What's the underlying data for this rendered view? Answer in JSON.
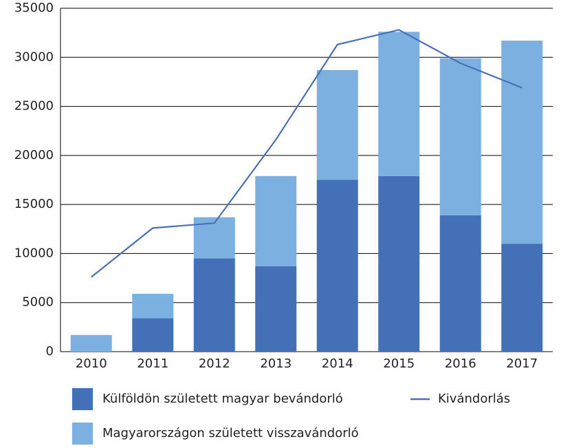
{
  "chart_data": {
    "type": "bar+line",
    "categories": [
      "2010",
      "2011",
      "2012",
      "2013",
      "2014",
      "2015",
      "2016",
      "2017"
    ],
    "series": [
      {
        "name": "Külföldön született magyar bevándorló",
        "type": "bar",
        "color": "#4470b8",
        "values": [
          0,
          3400,
          9500,
          8700,
          17500,
          17900,
          13900,
          11000
        ]
      },
      {
        "name": "Magyarországon született visszavándorló",
        "type": "bar",
        "color": "#7bb0e0",
        "values": [
          1700,
          2500,
          4200,
          9200,
          11200,
          14700,
          16000,
          20700
        ]
      },
      {
        "name": "Kivándorlás",
        "type": "line",
        "color": "#4a6fb5",
        "values": [
          7600,
          12600,
          13100,
          21600,
          31300,
          32800,
          29400,
          26900
        ]
      }
    ],
    "stacked": true,
    "ylim": [
      0,
      35000
    ],
    "yticks": [
      0,
      5000,
      10000,
      15000,
      20000,
      25000,
      30000,
      35000
    ],
    "grid": true
  }
}
